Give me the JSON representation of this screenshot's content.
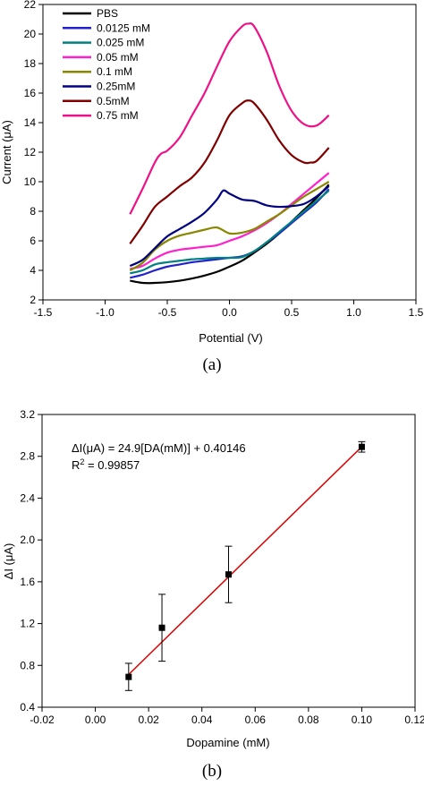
{
  "chart_data": [
    {
      "type": "line",
      "panel_label": "(a)",
      "xlabel": "Potential (V)",
      "ylabel": "Current (μA)",
      "xlim": [
        -1.5,
        1.5
      ],
      "ylim": [
        2,
        22
      ],
      "xticks": [
        -1.5,
        -1.0,
        -0.5,
        0.0,
        0.5,
        1.0,
        1.5
      ],
      "xtick_labels": [
        "-1.5",
        "-1.0",
        "-0.5",
        "0.0",
        "0.5",
        "1.0",
        "1.5"
      ],
      "yticks": [
        2,
        4,
        6,
        8,
        10,
        12,
        14,
        16,
        18,
        20,
        22
      ],
      "ytick_labels": [
        "2",
        "4",
        "6",
        "8",
        "10",
        "12",
        "14",
        "16",
        "18",
        "20",
        "22"
      ],
      "legend_position": "top-left",
      "series": [
        {
          "name": "PBS",
          "color": "#000000",
          "x": [
            -0.8,
            -0.7,
            -0.6,
            -0.5,
            -0.4,
            -0.3,
            -0.2,
            -0.1,
            0.0,
            0.1,
            0.2,
            0.3,
            0.4,
            0.5,
            0.6,
            0.7,
            0.8
          ],
          "y": [
            3.3,
            3.15,
            3.15,
            3.2,
            3.3,
            3.45,
            3.65,
            3.9,
            4.25,
            4.65,
            5.2,
            5.8,
            6.5,
            7.3,
            8.1,
            8.9,
            9.8
          ]
        },
        {
          "name": "0.0125 mM",
          "color": "#2222cc",
          "x": [
            -0.8,
            -0.7,
            -0.6,
            -0.5,
            -0.4,
            -0.3,
            -0.2,
            -0.1,
            0.0,
            0.1,
            0.2,
            0.3,
            0.4,
            0.5,
            0.6,
            0.7,
            0.8
          ],
          "y": [
            3.5,
            3.7,
            4.0,
            4.25,
            4.4,
            4.55,
            4.65,
            4.75,
            4.85,
            4.95,
            5.3,
            5.9,
            6.5,
            7.2,
            7.9,
            8.6,
            9.5
          ]
        },
        {
          "name": "0.025 mM",
          "color": "#008080",
          "x": [
            -0.8,
            -0.7,
            -0.6,
            -0.5,
            -0.4,
            -0.3,
            -0.2,
            -0.1,
            0.0,
            0.1,
            0.2,
            0.3,
            0.4,
            0.5,
            0.6,
            0.7,
            0.8
          ],
          "y": [
            3.8,
            4.0,
            4.4,
            4.55,
            4.65,
            4.75,
            4.8,
            4.85,
            4.85,
            4.9,
            5.3,
            5.9,
            6.6,
            7.3,
            8.0,
            8.7,
            9.4
          ]
        },
        {
          "name": "0.05 mM",
          "color": "#ff22cc",
          "x": [
            -0.8,
            -0.7,
            -0.6,
            -0.5,
            -0.4,
            -0.3,
            -0.2,
            -0.1,
            0.0,
            0.1,
            0.2,
            0.3,
            0.4,
            0.5,
            0.6,
            0.7,
            0.8
          ],
          "y": [
            4.1,
            4.3,
            4.8,
            5.2,
            5.4,
            5.5,
            5.6,
            5.7,
            6.0,
            6.3,
            6.7,
            7.2,
            7.8,
            8.5,
            9.2,
            9.9,
            10.6
          ]
        },
        {
          "name": "0.1 mM",
          "color": "#888800",
          "x": [
            -0.8,
            -0.7,
            -0.6,
            -0.5,
            -0.4,
            -0.3,
            -0.2,
            -0.1,
            0.0,
            0.1,
            0.2,
            0.3,
            0.4,
            0.5,
            0.6,
            0.7,
            0.8
          ],
          "y": [
            4.0,
            4.5,
            5.4,
            6.0,
            6.35,
            6.55,
            6.75,
            6.9,
            6.5,
            6.55,
            6.8,
            7.3,
            7.8,
            8.4,
            9.0,
            9.5,
            10.0
          ]
        },
        {
          "name": "0.25mM",
          "color": "#000080",
          "x": [
            -0.8,
            -0.7,
            -0.6,
            -0.5,
            -0.4,
            -0.3,
            -0.2,
            -0.1,
            -0.05,
            0.0,
            0.1,
            0.2,
            0.3,
            0.4,
            0.5,
            0.6,
            0.7,
            0.8
          ],
          "y": [
            4.3,
            4.7,
            5.5,
            6.3,
            6.8,
            7.3,
            7.9,
            8.8,
            9.4,
            9.2,
            8.8,
            8.7,
            8.4,
            8.3,
            8.35,
            8.5,
            9.0,
            9.7
          ]
        },
        {
          "name": "0.5mM",
          "color": "#800000",
          "x": [
            -0.8,
            -0.7,
            -0.6,
            -0.5,
            -0.4,
            -0.3,
            -0.2,
            -0.1,
            0.0,
            0.1,
            0.15,
            0.2,
            0.3,
            0.4,
            0.5,
            0.6,
            0.65,
            0.7,
            0.8
          ],
          "y": [
            5.8,
            7.0,
            8.3,
            9.0,
            9.7,
            10.3,
            11.3,
            12.8,
            14.5,
            15.3,
            15.5,
            15.3,
            14.2,
            12.8,
            11.8,
            11.3,
            11.3,
            11.4,
            12.3
          ]
        },
        {
          "name": "0.75 mM",
          "color": "#ee1188",
          "x": [
            -0.8,
            -0.7,
            -0.6,
            -0.55,
            -0.5,
            -0.4,
            -0.3,
            -0.2,
            -0.1,
            0.0,
            0.1,
            0.15,
            0.2,
            0.3,
            0.4,
            0.5,
            0.6,
            0.7,
            0.8
          ],
          "y": [
            7.8,
            9.5,
            11.3,
            11.9,
            12.1,
            13.0,
            14.5,
            16.0,
            17.8,
            19.5,
            20.5,
            20.7,
            20.5,
            18.8,
            16.5,
            14.8,
            13.9,
            13.8,
            14.5
          ]
        }
      ]
    },
    {
      "type": "scatter",
      "panel_label": "(b)",
      "xlabel": "Dopamine (mM)",
      "ylabel": "ΔI (μA)",
      "xlim": [
        -0.02,
        0.12
      ],
      "ylim": [
        0.4,
        3.2
      ],
      "xticks": [
        -0.02,
        0.0,
        0.02,
        0.04,
        0.06,
        0.08,
        0.1,
        0.12
      ],
      "xtick_labels": [
        "-0.02",
        "0.00",
        "0.02",
        "0.04",
        "0.06",
        "0.08",
        "0.10",
        "0.12"
      ],
      "yticks": [
        0.4,
        0.8,
        1.2,
        1.6,
        2.0,
        2.4,
        2.8,
        3.2
      ],
      "ytick_labels": [
        "0.4",
        "0.8",
        "1.2",
        "1.6",
        "2.0",
        "2.4",
        "2.8",
        "3.2"
      ],
      "equation_lhs": "ΔI(μA) = 24.9[DA(mM)] + 0.40146",
      "r2_prefix": "R",
      "r2_sup": "2",
      "r2_value": " = 0.99857",
      "points": [
        {
          "x": 0.0125,
          "y": 0.69,
          "err": 0.13
        },
        {
          "x": 0.025,
          "y": 1.16,
          "err": 0.32
        },
        {
          "x": 0.05,
          "y": 1.67,
          "err": 0.27
        },
        {
          "x": 0.1,
          "y": 2.89,
          "err": 0.05
        }
      ],
      "fit": {
        "slope": 24.9,
        "intercept": 0.40146,
        "x_range": [
          0.0125,
          0.1
        ],
        "color": "#dd0000"
      }
    }
  ]
}
